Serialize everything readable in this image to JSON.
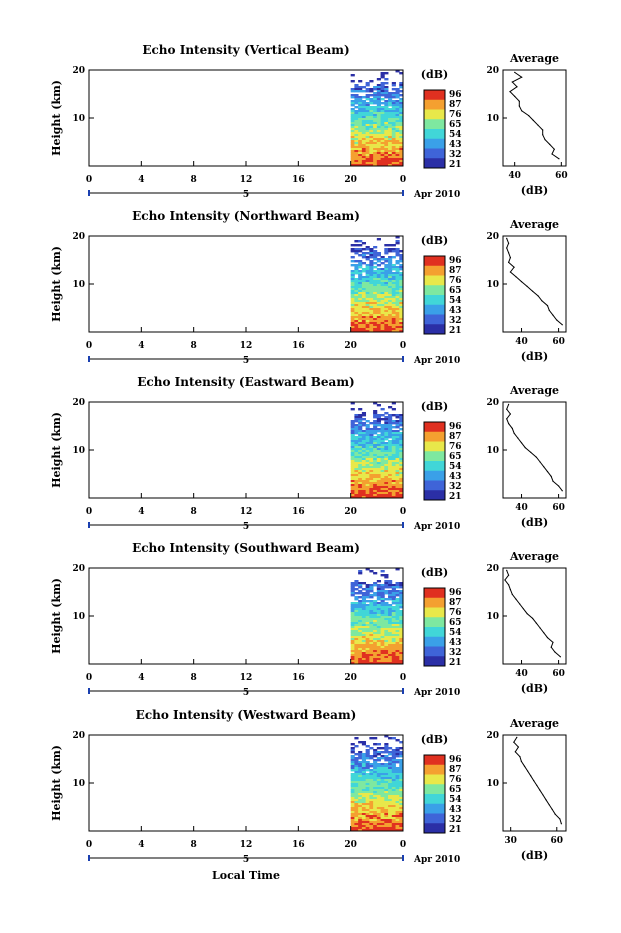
{
  "figure": {
    "x_axis_label": "Local Time",
    "date_label": "Apr 2010",
    "date_marker": "5",
    "y_axis_label": "Height (km)",
    "colorbar_unit": "(dB)",
    "profile_title": "Average",
    "profile_xlabel": "(dB)",
    "colorbar_ticks": [
      "96",
      "87",
      "76",
      "65",
      "54",
      "43",
      "32",
      "21"
    ],
    "colorscale": [
      "#2b2fa6",
      "#3f64d8",
      "#3aa0e8",
      "#41d6d8",
      "#7ee8a0",
      "#e8e84a",
      "#f4a030",
      "#e03020"
    ],
    "x_ticks": [
      "0",
      "4",
      "8",
      "12",
      "16",
      "20",
      "0"
    ]
  },
  "chart_data": [
    {
      "type": "heatmap",
      "title": "Echo Intensity (Vertical Beam)",
      "xlabel": "",
      "ylabel": "Height (km)",
      "ylim": [
        0,
        20
      ],
      "xlim": [
        0,
        24
      ],
      "data_start_hour": 20,
      "profile": {
        "xticks": [
          "40",
          "60"
        ],
        "xlim": [
          35,
          62
        ],
        "heights": [
          19.5,
          18.5,
          17.5,
          16.5,
          15.5,
          14.5,
          13.5,
          12.5,
          11.5,
          10.5,
          9.5,
          8.5,
          7.5,
          6.5,
          5.5,
          4.5,
          3.5,
          2.5,
          1.5
        ],
        "values": [
          40,
          43,
          39,
          41,
          38,
          40,
          42,
          42,
          43,
          46,
          48,
          50,
          52,
          52,
          53,
          55,
          57,
          56,
          59
        ]
      }
    },
    {
      "type": "heatmap",
      "title": "Echo Intensity (Northward Beam)",
      "xlabel": "",
      "ylabel": "Height (km)",
      "ylim": [
        0,
        20
      ],
      "xlim": [
        0,
        24
      ],
      "data_start_hour": 20,
      "profile": {
        "xticks": [
          "40",
          "60"
        ],
        "xlim": [
          30,
          64
        ],
        "heights": [
          19.5,
          18.5,
          17.5,
          16.5,
          15.5,
          14.5,
          13.5,
          12.5,
          11.5,
          10.5,
          9.5,
          8.5,
          7.5,
          6.5,
          5.5,
          4.5,
          3.5,
          2.5,
          1.5
        ],
        "values": [
          32,
          33,
          32,
          33,
          34,
          33,
          36,
          34,
          37,
          40,
          43,
          46,
          49,
          51,
          54,
          55,
          57,
          59,
          62
        ]
      }
    },
    {
      "type": "heatmap",
      "title": "Echo Intensity (Eastward Beam)",
      "xlabel": "",
      "ylabel": "Height (km)",
      "ylim": [
        0,
        20
      ],
      "xlim": [
        0,
        24
      ],
      "data_start_hour": 20,
      "profile": {
        "xticks": [
          "40",
          "60"
        ],
        "xlim": [
          30,
          64
        ],
        "heights": [
          19.5,
          18.5,
          17.5,
          16.5,
          15.5,
          14.5,
          13.5,
          12.5,
          11.5,
          10.5,
          9.5,
          8.5,
          7.5,
          6.5,
          5.5,
          4.5,
          3.5,
          2.5,
          1.5
        ],
        "values": [
          33,
          32,
          34,
          32,
          33,
          35,
          36,
          38,
          40,
          42,
          45,
          48,
          50,
          52,
          54,
          56,
          57,
          60,
          62
        ]
      }
    },
    {
      "type": "heatmap",
      "title": "Echo Intensity (Southward Beam)",
      "xlabel": "",
      "ylabel": "Height (km)",
      "ylim": [
        0,
        20
      ],
      "xlim": [
        0,
        24
      ],
      "data_start_hour": 20,
      "profile": {
        "xticks": [
          "40",
          "60"
        ],
        "xlim": [
          30,
          64
        ],
        "heights": [
          19.5,
          18.5,
          17.5,
          16.5,
          15.5,
          14.5,
          13.5,
          12.5,
          11.5,
          10.5,
          9.5,
          8.5,
          7.5,
          6.5,
          5.5,
          4.5,
          3.5,
          2.5,
          1.5
        ],
        "values": [
          32,
          33,
          31,
          33,
          34,
          35,
          37,
          39,
          41,
          43,
          46,
          48,
          50,
          52,
          54,
          57,
          56,
          58,
          61
        ]
      }
    },
    {
      "type": "heatmap",
      "title": "Echo Intensity (Westward Beam)",
      "xlabel": "Local Time",
      "ylabel": "Height (km)",
      "ylim": [
        0,
        20
      ],
      "xlim": [
        0,
        24
      ],
      "data_start_hour": 20,
      "profile": {
        "xticks": [
          "30",
          "60"
        ],
        "xlim": [
          25,
          66
        ],
        "heights": [
          19.5,
          18.5,
          17.5,
          16.5,
          15.5,
          14.5,
          13.5,
          12.5,
          11.5,
          10.5,
          9.5,
          8.5,
          7.5,
          6.5,
          5.5,
          4.5,
          3.5,
          2.5,
          1.5
        ],
        "values": [
          34,
          32,
          35,
          33,
          36,
          37,
          39,
          41,
          43,
          45,
          47,
          49,
          51,
          53,
          55,
          57,
          59,
          62,
          63
        ]
      }
    }
  ]
}
